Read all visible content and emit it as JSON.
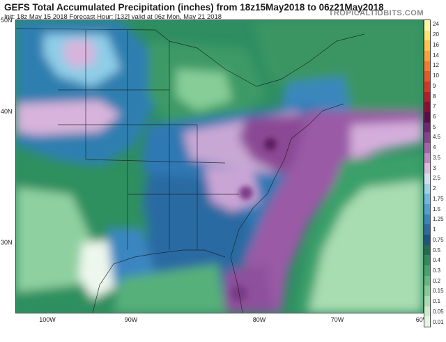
{
  "header": {
    "title": "GEFS Total Accumulated Precipitation (inches) from 18z15May2018 to 06z21May2018",
    "subtitle": "Init: 18z May 15 2018   Forecast Hour: [132]   valid at 06z Mon, May 21 2018",
    "brand": "TROPICALTIDBITS.COM"
  },
  "axes": {
    "lat_labels": [
      "50N",
      "40N",
      "30N"
    ],
    "lon_labels": [
      "100W",
      "90W",
      "80W",
      "70W",
      "60W"
    ]
  },
  "colorbar": {
    "labels": [
      "24",
      "20",
      "16",
      "14",
      "12",
      "10",
      "9",
      "8",
      "7",
      "6",
      "5",
      "4.5",
      "4",
      "3.5",
      "3",
      "2.5",
      "2",
      "1.75",
      "1.5",
      "1.25",
      "1",
      "0.75",
      "0.5",
      "0.4",
      "0.3",
      "0.2",
      "0.15",
      "0.1",
      "0.05",
      "0.01"
    ],
    "colors": [
      "#fff8a0",
      "#ffe36b",
      "#ffc24a",
      "#fba03a",
      "#f47b2e",
      "#e9562a",
      "#d63626",
      "#b51b2a",
      "#8c0d34",
      "#5d0d45",
      "#6d2775",
      "#86428e",
      "#a164aa",
      "#bf8ac4",
      "#dbb8dc",
      "#cfe0f2",
      "#9dd2ec",
      "#6fb8e1",
      "#4fa1d2",
      "#3886bd",
      "#2b6ba1",
      "#1c5581",
      "#1f6e52",
      "#2f8a5c",
      "#45a36d",
      "#62b980",
      "#85cc97",
      "#a9dcb0",
      "#cbe9cb",
      "#e6f4e4"
    ]
  },
  "colors": {
    "map_background": "#2e8d61"
  }
}
